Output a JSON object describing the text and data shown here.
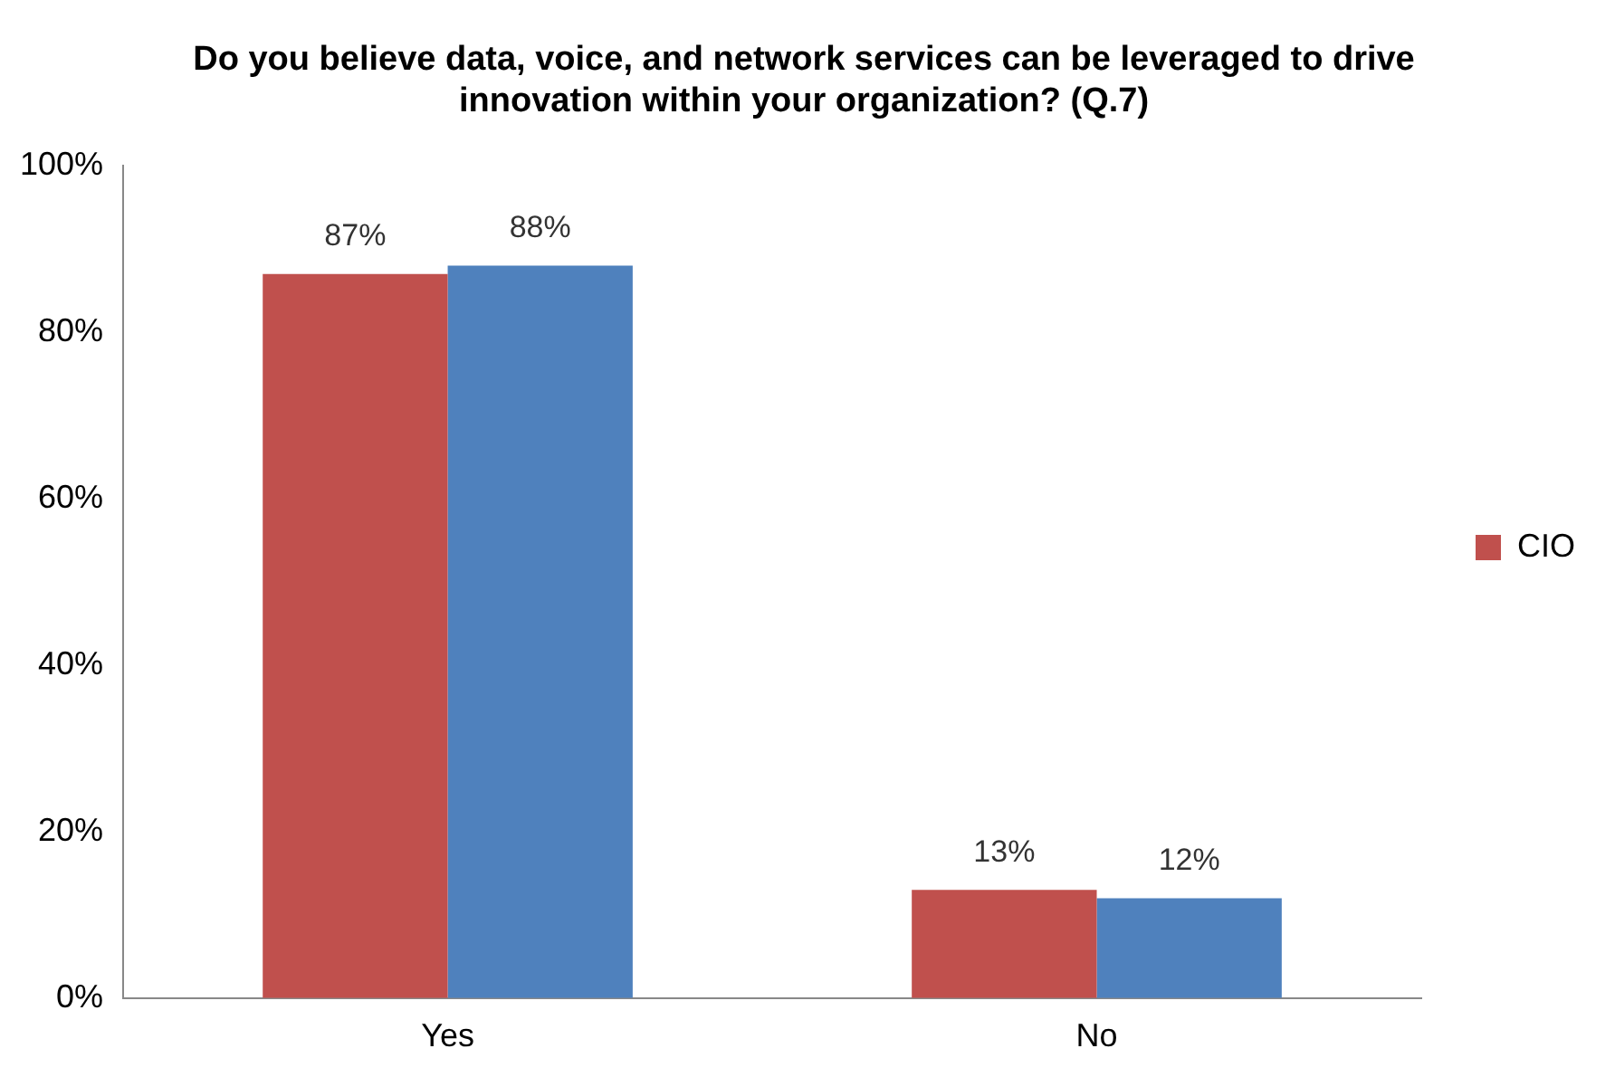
{
  "chart_data": {
    "type": "bar",
    "title": "Do you believe data, voice, and network services can be leveraged to drive innovation within your organization? (Q.7)",
    "categories": [
      "Yes",
      "No"
    ],
    "series": [
      {
        "name": "CIO",
        "color": "#c0504d",
        "values": [
          87,
          13
        ]
      },
      {
        "color": "#4f81bd",
        "values": [
          88,
          12
        ]
      }
    ],
    "ylim": [
      0,
      100
    ],
    "yticks": [
      {
        "value": 0,
        "label": "0%"
      },
      {
        "value": 20,
        "label": "20%"
      },
      {
        "value": 40,
        "label": "40%"
      },
      {
        "value": 60,
        "label": "60%"
      },
      {
        "value": 80,
        "label": "80%"
      },
      {
        "value": 100,
        "label": "100%"
      }
    ],
    "value_labels": [
      [
        "87%",
        "13%"
      ],
      [
        "88%",
        "12%"
      ]
    ],
    "legend": "right",
    "grid": false
  }
}
